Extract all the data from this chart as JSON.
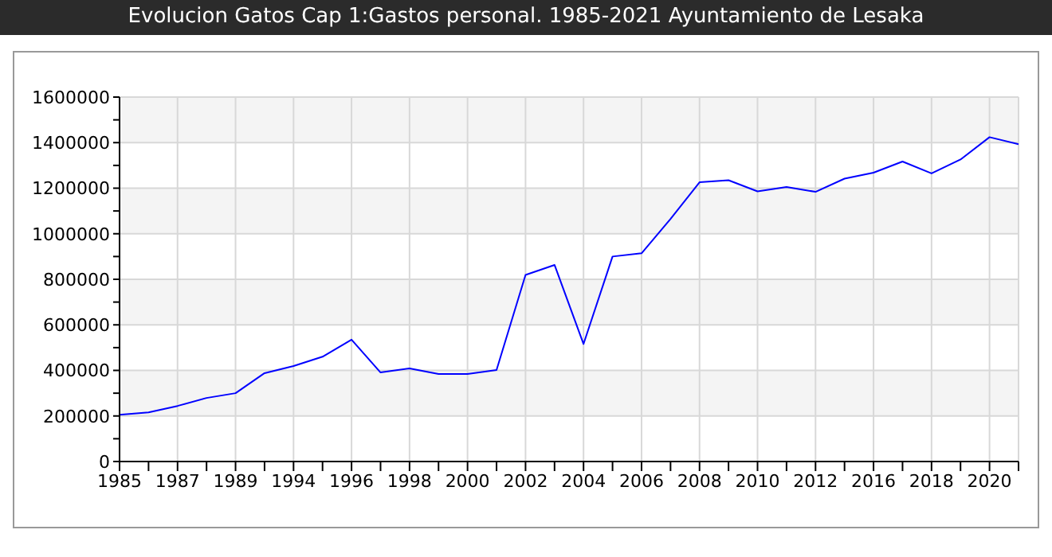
{
  "chart_data": {
    "type": "line",
    "title": "Evolucion Gatos Cap 1:Gastos personal. 1985-2021 Ayuntamiento de Lesaka",
    "categories": [
      "1985",
      null,
      "1987",
      null,
      "1989",
      null,
      "1994",
      null,
      "1996",
      null,
      "1998",
      null,
      "2000",
      null,
      "2002",
      null,
      "2004",
      null,
      "2006",
      null,
      "2008",
      null,
      "2010",
      null,
      "2012",
      null,
      "2016",
      null,
      "2018",
      null,
      "2020",
      null
    ],
    "series": [
      {
        "color": "#0000ff",
        "values": [
          205000,
          216000,
          244000,
          279000,
          300000,
          388000,
          419000,
          460000,
          535000,
          391000,
          409000,
          384000,
          384000,
          402000,
          819000,
          863000,
          516000,
          900000,
          914000,
          1065000,
          1226000,
          1235000,
          1186000,
          1205000,
          1184000,
          1242000,
          1268000,
          1317000,
          1265000,
          1326000,
          1424000,
          1393000
        ]
      }
    ],
    "ylim": [
      0,
      1600000
    ],
    "yticks": [
      0,
      {
        "value": 100000,
        "label": null
      },
      200000,
      {
        "value": 300000,
        "label": null
      },
      400000,
      {
        "value": 500000,
        "label": null
      },
      600000,
      {
        "value": 700000,
        "label": null
      },
      800000,
      {
        "value": 900000,
        "label": null
      },
      1000000,
      {
        "value": 1100000,
        "label": null
      },
      1200000,
      {
        "value": 1300000,
        "label": null
      },
      1400000,
      {
        "value": 1500000,
        "label": null
      },
      1600000
    ],
    "grid": true
  }
}
